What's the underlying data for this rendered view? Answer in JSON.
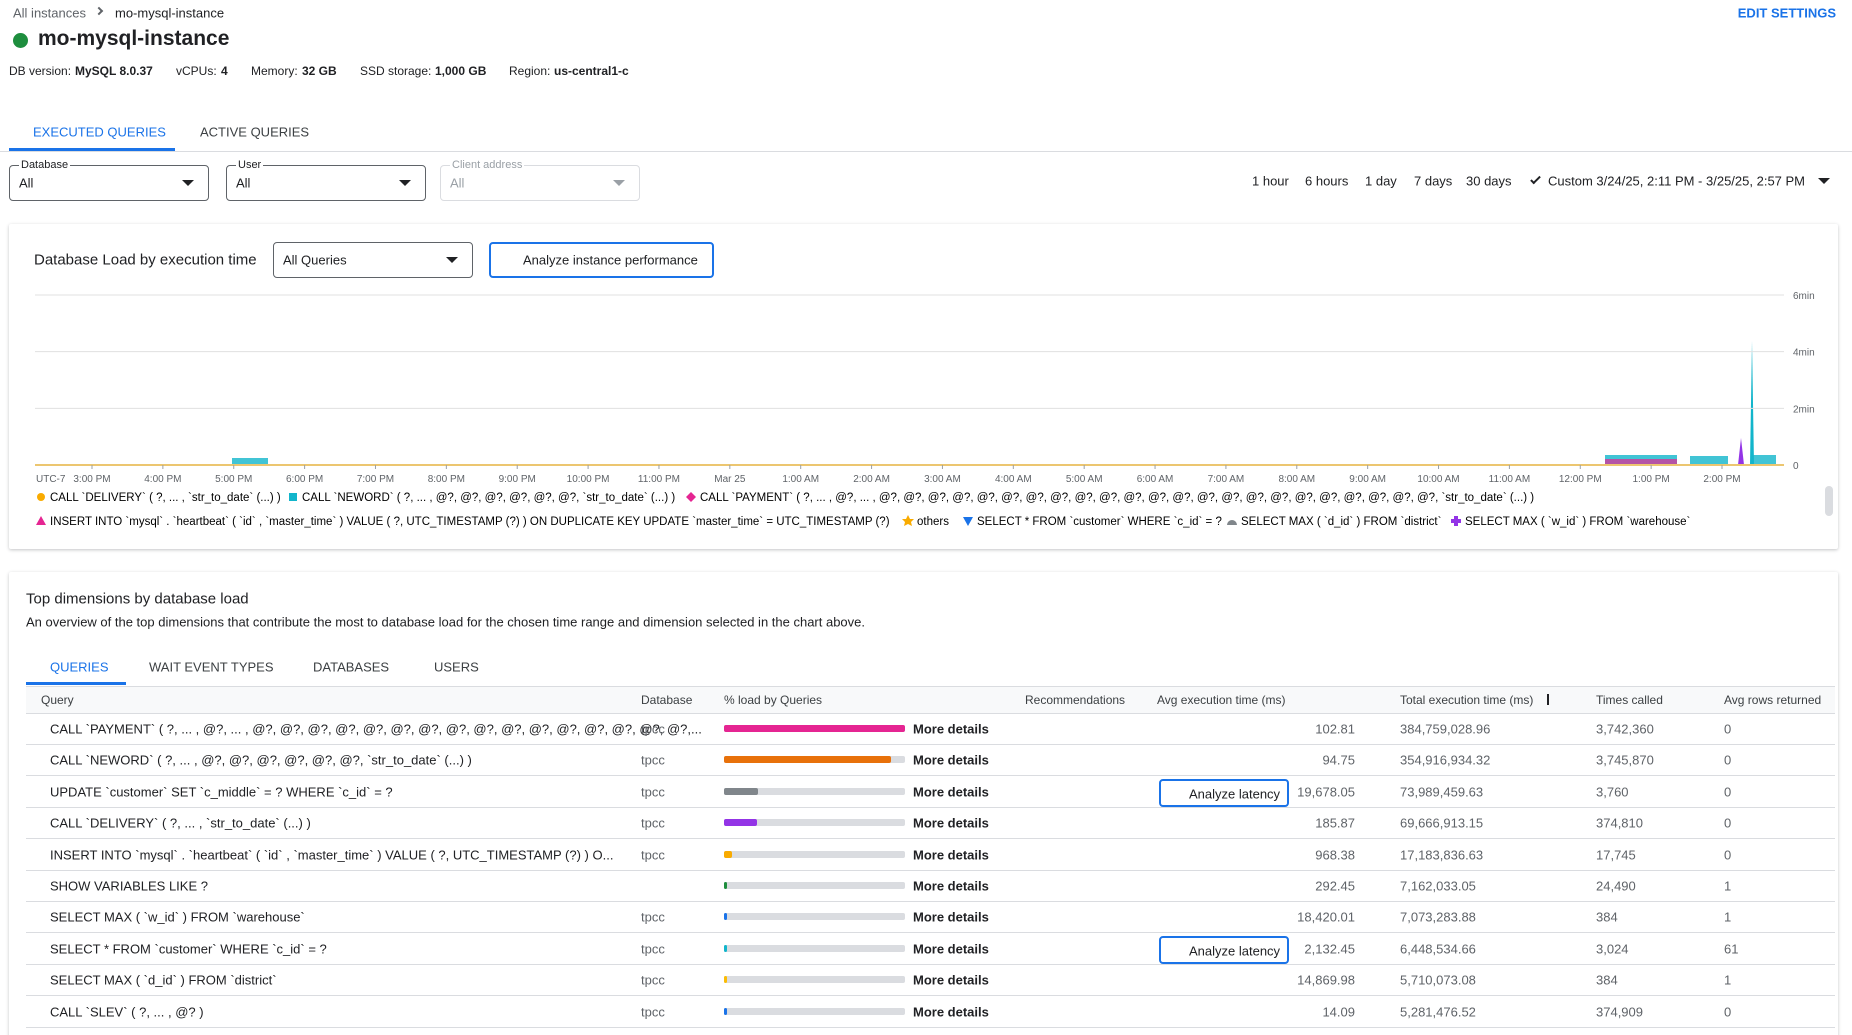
{
  "breadcrumb": {
    "parent": "All instances",
    "current": "mo-mysql-instance"
  },
  "edit_settings": "EDIT SETTINGS",
  "instance": {
    "name": "mo-mysql-instance",
    "info": [
      {
        "label": "DB version:",
        "value": "MySQL 8.0.37"
      },
      {
        "label": "vCPUs:",
        "value": "4"
      },
      {
        "label": "Memory:",
        "value": "32 GB"
      },
      {
        "label": "SSD storage:",
        "value": "1,000 GB"
      },
      {
        "label": "Region:",
        "value": "us-central1-c"
      }
    ]
  },
  "tabs": [
    "EXECUTED QUERIES",
    "ACTIVE QUERIES"
  ],
  "filters": [
    {
      "label": "Database",
      "value": "All"
    },
    {
      "label": "User",
      "value": "All"
    },
    {
      "label": "Client address",
      "value": "All"
    }
  ],
  "time_ranges": [
    "1 hour",
    "6 hours",
    "1 day",
    "7 days",
    "30 days",
    "Custom 3/24/25, 2:11 PM - 3/25/25, 2:57 PM"
  ],
  "chart_data": {
    "type": "area",
    "title": "Database Load by execution time",
    "dropdown": "All Queries",
    "button": "Analyze instance performance",
    "ylim": [
      0,
      6
    ],
    "yticks": [
      {
        "value": 0,
        "label": "0"
      },
      {
        "value": 2,
        "label": "2min"
      },
      {
        "value": 4,
        "label": "4min"
      },
      {
        "value": 6,
        "label": "6min"
      }
    ],
    "timezone": "UTC-7",
    "xticks": [
      "3:00 PM",
      "4:00 PM",
      "5:00 PM",
      "6:00 PM",
      "7:00 PM",
      "8:00 PM",
      "9:00 PM",
      "10:00 PM",
      "11:00 PM",
      "Mar 25",
      "1:00 AM",
      "2:00 AM",
      "3:00 AM",
      "4:00 AM",
      "5:00 AM",
      "6:00 AM",
      "7:00 AM",
      "8:00 AM",
      "9:00 AM",
      "10:00 AM",
      "11:00 AM",
      "12:00 PM",
      "1:00 PM",
      "2:00 PM"
    ],
    "grid": true,
    "series": [
      {
        "name": "CALL `DELIVERY` ( ?, ... , `str_to_date` (...) )",
        "color": "#f9ab00",
        "marker": "circle"
      },
      {
        "name": "CALL `NEWORD` ( ?, ... , @?, @?, @?, @?, @?, @?, `str_to_date` (...) )",
        "color": "#12b5cb",
        "marker": "square"
      },
      {
        "name": "CALL `PAYMENT` ( ?, ... , @?, ... , @?, @?, @?, @?, @?, @?, @?, @?, @?, @?, @?, @?, @?, @?, @?, @?, @?, @?, @?, @?, @?, @?, @?, `str_to_date` (...) )",
        "color": "#e52592",
        "marker": "diamond"
      },
      {
        "name": "INSERT INTO `mysql` . `heartbeat` ( `id` , `master_time` ) VALUE ( ?, UTC_TIMESTAMP (?) ) ON DUPLICATE KEY UPDATE `master_time` = UTC_TIMESTAMP (?)",
        "color": "#e52592",
        "marker": "triangle"
      },
      {
        "name": "others",
        "color": "#f9ab00",
        "marker": "star"
      },
      {
        "name": "SELECT * FROM `customer` WHERE `c_id` = ?",
        "color": "#1a73e8",
        "marker": "down"
      },
      {
        "name": "SELECT MAX ( `d_id` ) FROM `district`",
        "color": "#80868b",
        "marker": "semi"
      },
      {
        "name": "SELECT MAX ( `w_id` ) FROM `warehouse`",
        "color": "#9334e6",
        "marker": "plus"
      }
    ]
  },
  "dimensions": {
    "title": "Top dimensions by database load",
    "subtitle": "An overview of the top dimensions that contribute the most to database load for the chosen time range and dimension selected in the chart above.",
    "tabs": [
      "QUERIES",
      "WAIT EVENT TYPES",
      "DATABASES",
      "USERS"
    ],
    "columns": [
      "Query",
      "Database",
      "% load by Queries",
      "Recommendations",
      "Avg execution time (ms)",
      "Total execution time (ms)",
      "Times called",
      "Avg rows returned"
    ],
    "more": "More details",
    "rows": [
      {
        "query": "CALL `PAYMENT` ( ?, ... , @?, ... , @?, @?, @?, @?, @?, @?, @?, @?, @?, @?, @?, @?, @?, @?, @?, @?,...",
        "database": "tpcc",
        "load": 100,
        "color": "#e52592",
        "recommendation": null,
        "avg": "102.81",
        "total": "384,759,028.96",
        "times": "3,742,360",
        "rows": "0"
      },
      {
        "query": "CALL `NEWORD` ( ?, ... , @?, @?, @?, @?, @?, @?, `str_to_date` (...) )",
        "database": "tpcc",
        "load": 92,
        "color": "#e8710a",
        "recommendation": null,
        "avg": "94.75",
        "total": "354,916,934.32",
        "times": "3,745,870",
        "rows": "0"
      },
      {
        "query": "UPDATE `customer` SET `c_middle` = ? WHERE `c_id` = ?",
        "database": "tpcc",
        "load": 19,
        "color": "#80868b",
        "recommendation": "Analyze latency",
        "avg": "19,678.05",
        "total": "73,989,459.63",
        "times": "3,760",
        "rows": "0"
      },
      {
        "query": "CALL `DELIVERY` ( ?, ... , `str_to_date` (...) )",
        "database": "tpcc",
        "load": 18,
        "color": "#9334e6",
        "recommendation": null,
        "avg": "185.87",
        "total": "69,666,913.15",
        "times": "374,810",
        "rows": "0"
      },
      {
        "query": "INSERT INTO `mysql` . `heartbeat` ( `id` , `master_time` ) VALUE ( ?, UTC_TIMESTAMP (?) ) O...",
        "database": "tpcc",
        "load": 4.5,
        "color": "#f9ab00",
        "recommendation": null,
        "avg": "968.38",
        "total": "17,183,836.63",
        "times": "17,745",
        "rows": "0"
      },
      {
        "query": "SHOW VARIABLES LIKE ?",
        "database": null,
        "load": 1.9,
        "color": "#1e8e3e",
        "recommendation": null,
        "avg": "292.45",
        "total": "7,162,033.05",
        "times": "24,490",
        "rows": "1"
      },
      {
        "query": "SELECT MAX ( `w_id` ) FROM `warehouse`",
        "database": "tpcc",
        "load": 1.8,
        "color": "#1a73e8",
        "recommendation": null,
        "avg": "18,420.01",
        "total": "7,073,283.88",
        "times": "384",
        "rows": "1"
      },
      {
        "query": "SELECT * FROM `customer` WHERE `c_id` = ?",
        "database": "tpcc",
        "load": 1.7,
        "color": "#12b5cb",
        "recommendation": "Analyze latency",
        "avg": "2,132.45",
        "total": "6,448,534.66",
        "times": "3,024",
        "rows": "61"
      },
      {
        "query": "SELECT MAX ( `d_id` ) FROM `district`",
        "database": "tpcc",
        "load": 1.5,
        "color": "#fbbc04",
        "recommendation": null,
        "avg": "14,869.98",
        "total": "5,710,073.08",
        "times": "384",
        "rows": "1"
      },
      {
        "query": "CALL `SLEV` ( ?, ... , @? )",
        "database": "tpcc",
        "load": 1.4,
        "color": "#1a73e8",
        "recommendation": null,
        "avg": "14.09",
        "total": "5,281,476.52",
        "times": "374,909",
        "rows": "0"
      }
    ]
  }
}
